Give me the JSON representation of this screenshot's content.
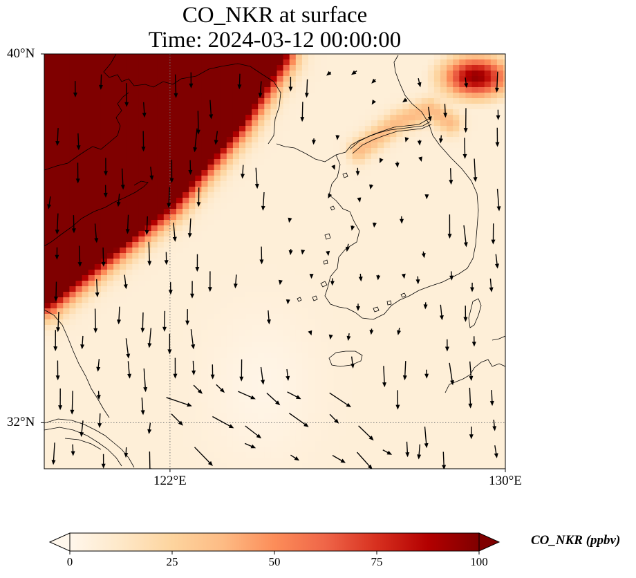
{
  "title": {
    "line1": "CO_NKR at surface",
    "line2": "Time: 2024-03-12 00:00:00"
  },
  "map": {
    "lon_range": [
      119.0,
      130.0
    ],
    "lat_range": [
      31.0,
      40.0
    ],
    "projection": "PlateCarree",
    "gridlines": "dotted",
    "lat_ticks": [
      {
        "value": 40,
        "label": "40°N"
      },
      {
        "value": 32,
        "label": "32°N"
      }
    ],
    "lon_ticks": [
      {
        "value": 122,
        "label": "122°E"
      },
      {
        "value": 130,
        "label": "130°E"
      }
    ],
    "field": {
      "variable": "CO_NKR",
      "units": "ppbv",
      "colormap": "OrRd",
      "vmin": 0,
      "vmax": 100,
      "plume_axis": [
        [
          119.0,
          34.8
        ],
        [
          121.9,
          36.9
        ],
        [
          123.5,
          38.6
        ],
        [
          124.5,
          40.0
        ]
      ],
      "plume_peak_ppbv": 130,
      "plume_background_ppbv": 7,
      "secondary_plume": {
        "center": [
          129.3,
          39.5
        ],
        "peak_ppbv": 95
      },
      "coastal_plume_line": [
        [
          126.5,
          37.9
        ],
        [
          127.4,
          38.5
        ],
        [
          128.2,
          38.8
        ],
        [
          128.7,
          38.5
        ]
      ]
    },
    "wind_vectors": "quiver, predominantly northerly to north-northwesterly"
  },
  "colorbar": {
    "label": "CO_NKR (ppbv)",
    "extend": "both",
    "ticks": [
      {
        "value": 0,
        "label": "0"
      },
      {
        "value": 25,
        "label": "25"
      },
      {
        "value": 50,
        "label": "50"
      },
      {
        "value": 75,
        "label": "75"
      },
      {
        "value": 100,
        "label": "100"
      }
    ],
    "colors": [
      "#fff7ec",
      "#fee8c8",
      "#fdd49e",
      "#fdbb84",
      "#fc8d59",
      "#ef6548",
      "#d7301f",
      "#b30000",
      "#7f0000"
    ]
  }
}
